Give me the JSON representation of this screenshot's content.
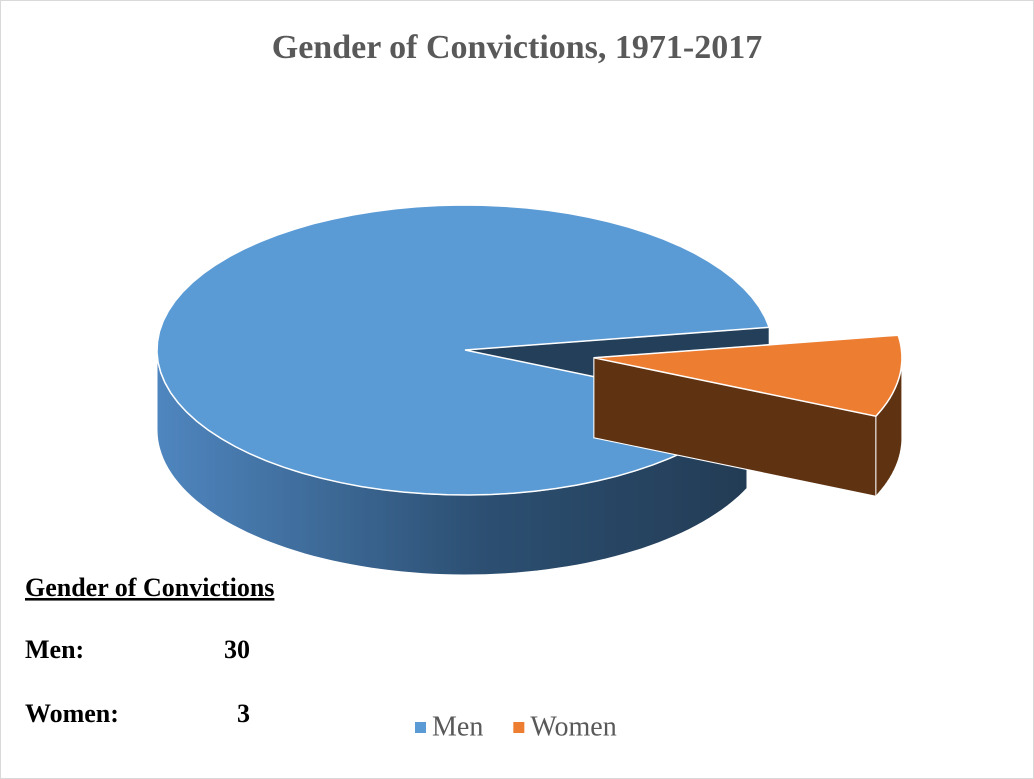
{
  "chart_data": {
    "type": "pie3d",
    "title": "Gender of Convictions, 1971-2017",
    "categories": [
      "Men",
      "Women"
    ],
    "values": [
      30,
      3
    ],
    "colors": [
      "#5b9bd5",
      "#ed7d31"
    ],
    "legend": "bottom"
  },
  "text_box": {
    "title": "Gender of Convictions",
    "labels": [
      "Men:",
      "Women:"
    ]
  }
}
